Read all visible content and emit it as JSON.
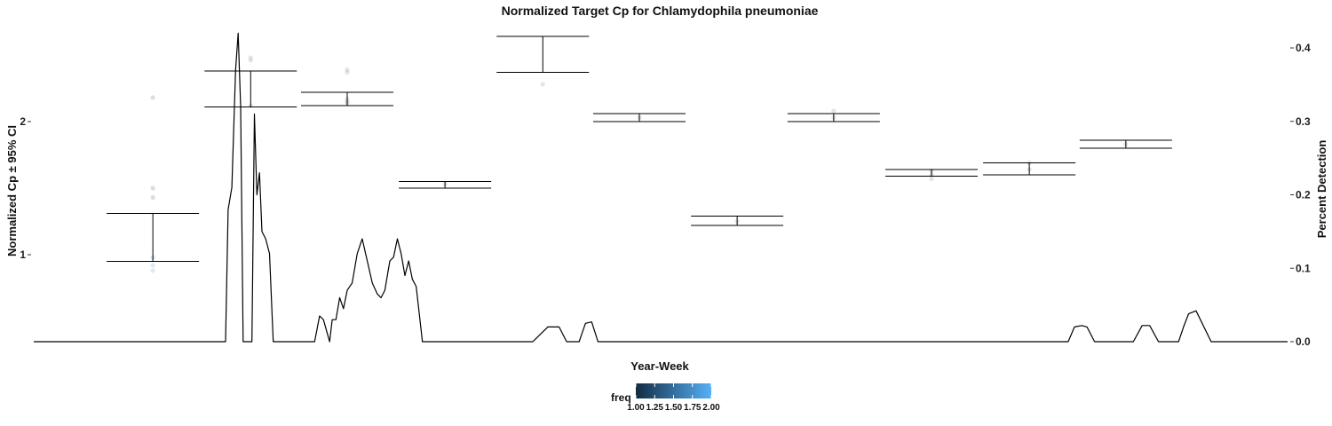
{
  "chart_data": {
    "type": "line",
    "title": "Normalized Target Cp for Chlamydophila pneumoniae",
    "xlabel": "Year-Week",
    "ylabel": "Normalized Cp ± 95% CI",
    "y2label": "Percent Detection",
    "ylim": [
      0.33,
      2.65
    ],
    "yticks": [
      1,
      2
    ],
    "y2lim": [
      0.0,
      0.4
    ],
    "y2ticks": [
      0.0,
      0.1,
      0.2,
      0.3,
      0.4
    ],
    "y2tick_labels": [
      "0.0",
      "0.1",
      "0.2",
      "0.3",
      "0.4"
    ],
    "x_index_range": [
      0,
      1000
    ],
    "grid": false,
    "legend_title": "freq",
    "legend_ticks": [
      "1.00",
      "1.25",
      "1.50",
      "1.75",
      "2.00"
    ],
    "legend_colors": [
      "#132b43",
      "#56b1f7"
    ],
    "error_bars": [
      {
        "x": 95,
        "lower": 0.95,
        "upper": 1.31
      },
      {
        "x": 173,
        "lower": 2.11,
        "upper": 2.38
      },
      {
        "x": 250,
        "lower": 2.12,
        "upper": 2.22
      },
      {
        "x": 328,
        "lower": 1.5,
        "upper": 1.55
      },
      {
        "x": 406,
        "lower": 2.37,
        "upper": 2.64
      },
      {
        "x": 483,
        "lower": 2.0,
        "upper": 2.06
      },
      {
        "x": 561,
        "lower": 1.22,
        "upper": 1.29
      },
      {
        "x": 638,
        "lower": 2.0,
        "upper": 2.06
      },
      {
        "x": 716,
        "lower": 1.59,
        "upper": 1.64
      },
      {
        "x": 794,
        "lower": 1.6,
        "upper": 1.69
      },
      {
        "x": 871,
        "lower": 1.8,
        "upper": 1.86
      }
    ],
    "points": [
      {
        "x": 95,
        "y": 2.18,
        "freq": 1.3
      },
      {
        "x": 95,
        "y": 1.5,
        "freq": 1.2
      },
      {
        "x": 95,
        "y": 1.43,
        "freq": 1.2
      },
      {
        "x": 95,
        "y": 0.98,
        "freq": 1.5
      },
      {
        "x": 95,
        "y": 0.92,
        "freq": 1.7
      },
      {
        "x": 95,
        "y": 0.88,
        "freq": 1.8
      },
      {
        "x": 173,
        "y": 2.48,
        "freq": 1.0
      },
      {
        "x": 173,
        "y": 2.46,
        "freq": 1.0
      },
      {
        "x": 173,
        "y": 2.12,
        "freq": 1.0
      },
      {
        "x": 250,
        "y": 2.39,
        "freq": 1.0
      },
      {
        "x": 250,
        "y": 2.37,
        "freq": 1.0
      },
      {
        "x": 250,
        "y": 2.17,
        "freq": 1.0
      },
      {
        "x": 250,
        "y": 2.15,
        "freq": 1.0
      },
      {
        "x": 250,
        "y": 2.14,
        "freq": 1.0
      },
      {
        "x": 328,
        "y": 1.53,
        "freq": 1.0
      },
      {
        "x": 406,
        "y": 2.28,
        "freq": 1.0
      },
      {
        "x": 483,
        "y": 2.03,
        "freq": 1.0
      },
      {
        "x": 561,
        "y": 1.25,
        "freq": 1.0
      },
      {
        "x": 638,
        "y": 2.08,
        "freq": 1.0
      },
      {
        "x": 638,
        "y": 2.03,
        "freq": 1.0
      },
      {
        "x": 716,
        "y": 1.63,
        "freq": 1.0
      },
      {
        "x": 716,
        "y": 1.6,
        "freq": 1.0
      },
      {
        "x": 716,
        "y": 1.57,
        "freq": 1.0
      },
      {
        "x": 794,
        "y": 1.69,
        "freq": 1.0
      },
      {
        "x": 794,
        "y": 1.64,
        "freq": 1.0
      },
      {
        "x": 871,
        "y": 1.83,
        "freq": 1.0
      }
    ],
    "series": [
      {
        "axis": "right",
        "x": [
          0,
          149,
          153,
          155,
          158,
          161,
          163,
          165,
          167,
          170,
          172,
          174,
          176,
          178,
          180,
          182,
          185,
          188,
          191,
          194,
          197,
          200,
          204,
          209,
          224,
          228,
          231,
          236,
          238,
          241,
          244,
          247,
          250,
          254,
          258,
          262,
          266,
          270,
          274,
          277,
          280,
          284,
          287,
          290,
          293,
          296,
          299,
          302,
          305,
          310,
          315,
          330,
          359,
          370,
          398,
          410,
          419,
          425,
          430,
          435,
          440,
          445,
          450,
          455,
          460,
          480,
          500,
          520,
          540,
          560,
          570,
          592,
          606,
          610,
          614,
          618,
          622,
          627,
          632,
          650,
          670,
          690,
          700,
          725,
          729,
          735,
          739,
          743,
          760,
          780,
          815,
          825,
          830,
          836,
          840,
          846,
          850,
          856,
          863,
          877,
          884,
          890,
          897,
          903,
          913,
          917,
          921,
          927,
          939,
          945,
          951,
          958,
          961,
          1000
        ],
        "values": [
          0.0,
          0.0,
          0.0,
          0.18,
          0.21,
          0.37,
          0.42,
          0.32,
          0.0,
          0.0,
          0.0,
          0.0,
          0.31,
          0.2,
          0.23,
          0.15,
          0.14,
          0.12,
          0.0,
          0.0,
          0.0,
          0.0,
          0.0,
          0.0,
          0.0,
          0.035,
          0.03,
          0.0,
          0.03,
          0.03,
          0.06,
          0.045,
          0.07,
          0.08,
          0.12,
          0.14,
          0.11,
          0.08,
          0.065,
          0.06,
          0.07,
          0.11,
          0.115,
          0.14,
          0.12,
          0.09,
          0.11,
          0.085,
          0.075,
          0.0,
          0.0,
          0.0,
          0.0,
          0.0,
          0.0,
          0.02,
          0.02,
          0.0,
          0.0,
          0.0,
          0.025,
          0.027,
          0.0,
          0.0,
          0.0,
          0.0,
          0.0,
          0.0,
          0.0,
          0.0,
          0.0,
          0.0,
          0.0,
          0.0,
          0.0,
          0.0,
          0.0,
          0.0,
          0.0,
          0.0,
          0.0,
          0.0,
          0.0,
          0.0,
          0.0,
          0.0,
          0.0,
          0.0,
          0.0,
          0.0,
          0.0,
          0.0,
          0.02,
          0.022,
          0.02,
          0.0,
          0.0,
          0.0,
          0.0,
          0.0,
          0.022,
          0.022,
          0.0,
          0.0,
          0.0,
          0.02,
          0.038,
          0.042,
          0.0,
          0.0,
          0.0,
          0.0,
          0.0,
          0.0
        ]
      }
    ]
  }
}
